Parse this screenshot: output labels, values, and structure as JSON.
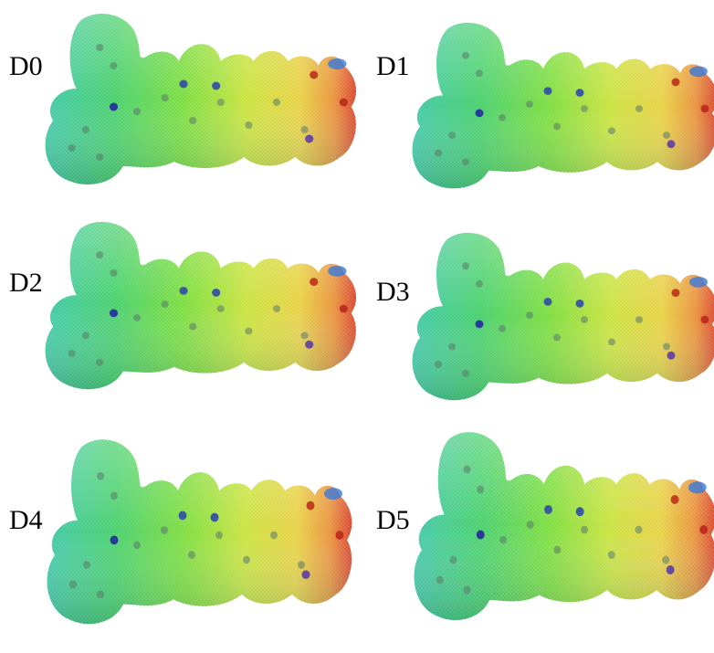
{
  "panels": [
    {
      "label": "D0"
    },
    {
      "label": "D1"
    },
    {
      "label": "D2"
    },
    {
      "label": "D3"
    },
    {
      "label": "D4"
    },
    {
      "label": "D5"
    }
  ]
}
